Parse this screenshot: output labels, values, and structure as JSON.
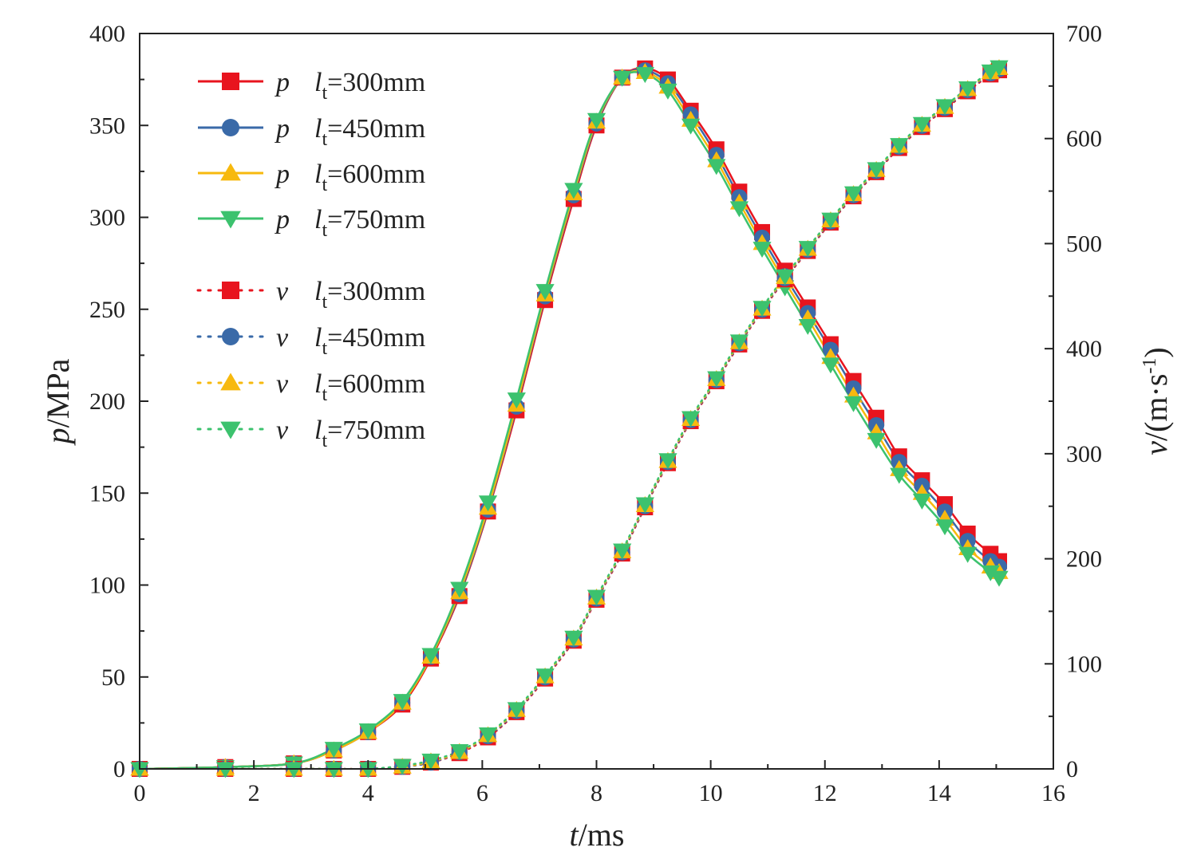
{
  "chart_data": {
    "type": "line",
    "title": "",
    "x": [
      0,
      1.5,
      2.7,
      3.4,
      4.0,
      4.6,
      5.1,
      5.6,
      6.1,
      6.6,
      7.1,
      7.6,
      8.0,
      8.45,
      8.85,
      9.25,
      9.65,
      10.1,
      10.5,
      10.9,
      11.3,
      11.7,
      12.1,
      12.5,
      12.9,
      13.3,
      13.7,
      14.1,
      14.5,
      14.9,
      15.05
    ],
    "xlabel_var": "t",
    "xlabel_unit": "/ms",
    "xlim": [
      0,
      16
    ],
    "xticks": [
      0,
      2,
      4,
      6,
      8,
      10,
      12,
      14,
      16
    ],
    "ylabel_var": "p",
    "ylabel_unit": "/MPa",
    "ylim": [
      0,
      400
    ],
    "yticks": [
      0,
      50,
      100,
      150,
      200,
      250,
      300,
      350,
      400
    ],
    "y2label_var": "v",
    "y2label_unit": "/(m·s",
    "y2label_sup": "-1",
    "y2label_close": ")",
    "y2lim": [
      0,
      700
    ],
    "y2ticks": [
      0,
      100,
      200,
      300,
      400,
      500,
      600,
      700
    ],
    "legend_position": "top-left",
    "series": [
      {
        "name": "p",
        "subscript_label": "l",
        "subscript": "t",
        "suffix": "=300mm",
        "axis": "left",
        "style": "solid",
        "marker": "square",
        "color": "#e8141e",
        "values": [
          0,
          1,
          3,
          10,
          20,
          35,
          60,
          94,
          140,
          195,
          255,
          310,
          350,
          376,
          381,
          375,
          358,
          337,
          314,
          292,
          271,
          251,
          231,
          211,
          191,
          170,
          157,
          144,
          128,
          117,
          113
        ]
      },
      {
        "name": "p",
        "subscript_label": "l",
        "subscript": "t",
        "suffix": "=450mm",
        "axis": "left",
        "style": "solid",
        "marker": "circle",
        "color": "#3a6aa8",
        "values": [
          0,
          1,
          3,
          10,
          20,
          36,
          61,
          95,
          141,
          197,
          257,
          312,
          351,
          376,
          380,
          373,
          356,
          334,
          311,
          289,
          268,
          248,
          228,
          207,
          187,
          167,
          154,
          140,
          124,
          113,
          110
        ]
      },
      {
        "name": "p",
        "subscript_label": "l",
        "subscript": "t",
        "suffix": "=600mm",
        "axis": "left",
        "style": "solid",
        "marker": "triangle-up",
        "color": "#f7b90e",
        "values": [
          0,
          1,
          3,
          10,
          20,
          36,
          61,
          96,
          142,
          198,
          258,
          313,
          352,
          376,
          379,
          371,
          353,
          331,
          308,
          286,
          265,
          245,
          224,
          203,
          183,
          163,
          150,
          136,
          120,
          110,
          107
        ]
      },
      {
        "name": "p",
        "subscript_label": "l",
        "subscript": "t",
        "suffix": "=750mm",
        "axis": "left",
        "style": "solid",
        "marker": "triangle-down",
        "color": "#3cc26e",
        "values": [
          0,
          1,
          3,
          11,
          21,
          37,
          62,
          98,
          145,
          201,
          260,
          315,
          353,
          376,
          378,
          369,
          350,
          328,
          305,
          283,
          262,
          241,
          220,
          199,
          179,
          160,
          146,
          132,
          117,
          107,
          104
        ]
      },
      {
        "name": "v",
        "subscript_label": "l",
        "subscript": "t",
        "suffix": "=300mm",
        "axis": "right",
        "style": "dotted",
        "marker": "square",
        "color": "#e8141e",
        "values": [
          0,
          0,
          0,
          0,
          0,
          2,
          6,
          15,
          30,
          54,
          86,
          122,
          161,
          205,
          249,
          291,
          331,
          369,
          404,
          436,
          466,
          493,
          520,
          545,
          568,
          591,
          611,
          628,
          645,
          661,
          665
        ]
      },
      {
        "name": "v",
        "subscript_label": "l",
        "subscript": "t",
        "suffix": "=450mm",
        "axis": "right",
        "style": "dotted",
        "marker": "circle",
        "color": "#3a6aa8",
        "values": [
          0,
          0,
          0,
          0,
          0,
          2,
          6,
          16,
          31,
          55,
          87,
          123,
          162,
          206,
          250,
          292,
          332,
          370,
          405,
          437,
          467,
          494,
          521,
          546,
          569,
          592,
          612,
          629,
          646,
          662,
          666
        ]
      },
      {
        "name": "v",
        "subscript_label": "l",
        "subscript": "t",
        "suffix": "=600mm",
        "axis": "right",
        "style": "dotted",
        "marker": "triangle-up",
        "color": "#f7b90e",
        "values": [
          0,
          0,
          0,
          0,
          0,
          2,
          7,
          16,
          32,
          56,
          88,
          124,
          163,
          207,
          251,
          293,
          333,
          371,
          406,
          438,
          468,
          495,
          522,
          547,
          570,
          593,
          613,
          630,
          647,
          663,
          667
        ]
      },
      {
        "name": "v",
        "subscript_label": "l",
        "subscript": "t",
        "suffix": "=750mm",
        "axis": "right",
        "style": "dotted",
        "marker": "triangle-down",
        "color": "#3cc26e",
        "values": [
          0,
          0,
          0,
          0,
          0,
          3,
          8,
          17,
          33,
          57,
          89,
          125,
          164,
          208,
          252,
          294,
          334,
          372,
          407,
          439,
          469,
          496,
          523,
          548,
          571,
          594,
          614,
          631,
          648,
          664,
          668
        ]
      }
    ]
  }
}
